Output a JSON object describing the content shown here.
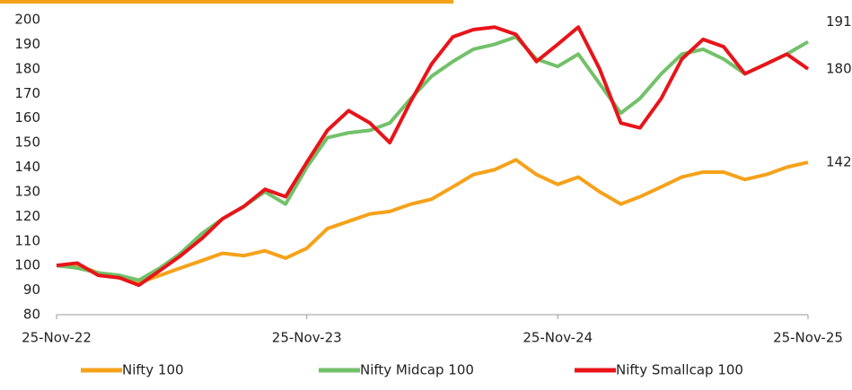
{
  "chart_data": {
    "type": "line",
    "x": [
      "2022-11-25",
      "2022-12-25",
      "2023-01-25",
      "2023-02-25",
      "2023-03-25",
      "2023-04-25",
      "2023-05-25",
      "2023-06-25",
      "2023-07-25",
      "2023-08-25",
      "2023-09-25",
      "2023-10-25",
      "2023-11-25",
      "2023-12-25",
      "2024-01-25",
      "2024-02-25",
      "2024-03-25",
      "2024-04-25",
      "2024-05-25",
      "2024-06-25",
      "2024-07-25",
      "2024-08-25",
      "2024-09-25",
      "2024-10-25",
      "2024-11-25",
      "2024-12-25",
      "2025-01-25",
      "2025-02-25",
      "2025-03-25",
      "2025-04-25",
      "2025-05-25",
      "2025-06-25",
      "2025-07-25",
      "2025-08-25",
      "2025-09-25",
      "2025-10-25",
      "2025-11-25"
    ],
    "series": [
      {
        "name": "Nifty 100",
        "color": "#f5a21b",
        "values": [
          100,
          100,
          97,
          95,
          93,
          96,
          99,
          102,
          105,
          104,
          106,
          103,
          107,
          115,
          118,
          121,
          122,
          125,
          127,
          132,
          137,
          139,
          143,
          137,
          133,
          136,
          130,
          125,
          128,
          132,
          136,
          138,
          138,
          135,
          137,
          140,
          142
        ]
      },
      {
        "name": "Nifty Midcap 100",
        "color": "#72c16a",
        "values": [
          100,
          99,
          97,
          96,
          94,
          99,
          105,
          113,
          119,
          124,
          130,
          125,
          140,
          152,
          154,
          155,
          158,
          168,
          177,
          183,
          188,
          190,
          193,
          184,
          181,
          186,
          174,
          162,
          168,
          178,
          186,
          188,
          184,
          178,
          182,
          186,
          191
        ]
      },
      {
        "name": "Nifty Smallcap 100",
        "color": "#e8141a",
        "values": [
          100,
          101,
          96,
          95,
          92,
          98,
          104,
          111,
          119,
          124,
          131,
          128,
          142,
          155,
          163,
          158,
          150,
          167,
          182,
          193,
          196,
          197,
          194,
          183,
          190,
          197,
          180,
          158,
          156,
          168,
          184,
          192,
          189,
          178,
          182,
          186,
          180
        ]
      }
    ],
    "xlim": [
      "2022-11-25",
      "2025-11-25"
    ],
    "xticks": [
      {
        "value": "2022-11-25",
        "label": "25-Nov-22"
      },
      {
        "value": "2023-11-25",
        "label": "25-Nov-23"
      },
      {
        "value": "2024-11-25",
        "label": "25-Nov-24"
      },
      {
        "value": "2025-11-25",
        "label": "25-Nov-25"
      }
    ],
    "ylim": [
      80,
      200
    ],
    "yticks": [
      80,
      90,
      100,
      110,
      120,
      130,
      140,
      150,
      160,
      170,
      180,
      190,
      200
    ],
    "grid": false,
    "legend": "bottom"
  }
}
